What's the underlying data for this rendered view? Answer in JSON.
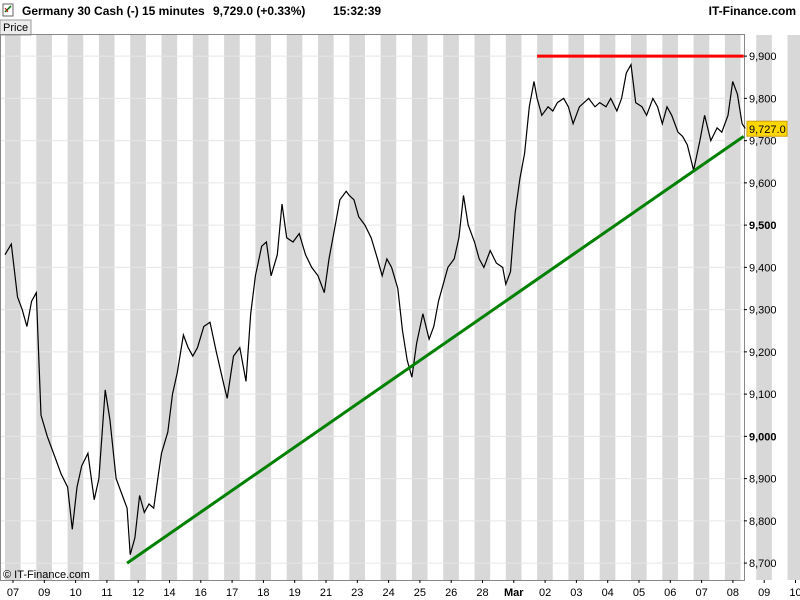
{
  "header": {
    "instrument": "Germany 30 Cash (-)",
    "timeframe": "15 minutes",
    "quote": "9,729.0 (+0.33%)",
    "time": "15:32:39",
    "brand": "IT-Finance.com"
  },
  "price_tab_label": "Price",
  "copyright": "© IT-Finance.com",
  "current_price_label": "9,727.0",
  "colors": {
    "price_line": "#000000",
    "resistance": "#ff0000",
    "support": "#008000",
    "band_shaded": "#d8d8d8",
    "band_light": "#ffffff",
    "price_badge": "#ffd700"
  },
  "chart_data": {
    "type": "line",
    "title": "Germany 30 Cash (-)",
    "xlabel": "",
    "ylabel": "",
    "ylim": [
      8660,
      9950
    ],
    "yticks": [
      8700,
      8800,
      8900,
      9000,
      9100,
      9200,
      9300,
      9400,
      9500,
      9600,
      9700,
      9800,
      9900
    ],
    "ytick_labels": [
      "8,700",
      "8,800",
      "8,900",
      "9,000",
      "9,100",
      "9,200",
      "9,300",
      "9,400",
      "9,500",
      "9,600",
      "9,700",
      "9,800",
      "9,900"
    ],
    "bold_yticks": [
      "9,000",
      "9,500"
    ],
    "grid": true,
    "sessions": [
      "07",
      "09",
      "10",
      "11",
      "12",
      "14",
      "16",
      "17",
      "18",
      "19",
      "21",
      "23",
      "24",
      "25",
      "26",
      "28",
      "Mar",
      "02",
      "03",
      "04",
      "05",
      "06",
      "07",
      "08",
      "09",
      "10"
    ],
    "x_tick_labels": [
      "07",
      "09",
      "10",
      "11",
      "12",
      "14",
      "16",
      "17",
      "18",
      "19",
      "21",
      "23",
      "24",
      "25",
      "26",
      "28",
      "Mar",
      "02",
      "03",
      "04",
      "05",
      "06",
      "07",
      "08",
      "09",
      "10"
    ],
    "series": [
      {
        "values": [
          [
            0.0,
            9430
          ],
          [
            0.2,
            9455
          ],
          [
            0.4,
            9330
          ],
          [
            0.55,
            9300
          ],
          [
            0.7,
            9260
          ],
          [
            0.85,
            9320
          ],
          [
            1.0,
            9340
          ],
          [
            1.15,
            9050
          ],
          [
            1.35,
            9000
          ],
          [
            1.6,
            8950
          ],
          [
            1.8,
            8910
          ],
          [
            2.0,
            8880
          ],
          [
            2.15,
            8780
          ],
          [
            2.3,
            8880
          ],
          [
            2.45,
            8930
          ],
          [
            2.65,
            8960
          ],
          [
            2.85,
            8850
          ],
          [
            3.0,
            8900
          ],
          [
            3.2,
            9110
          ],
          [
            3.35,
            9040
          ],
          [
            3.55,
            8900
          ],
          [
            3.75,
            8860
          ],
          [
            3.9,
            8830
          ],
          [
            4.0,
            8720
          ],
          [
            4.15,
            8760
          ],
          [
            4.3,
            8860
          ],
          [
            4.45,
            8820
          ],
          [
            4.6,
            8840
          ],
          [
            4.75,
            8830
          ],
          [
            4.9,
            8910
          ],
          [
            5.0,
            8960
          ],
          [
            5.2,
            9010
          ],
          [
            5.35,
            9100
          ],
          [
            5.5,
            9150
          ],
          [
            5.7,
            9240
          ],
          [
            5.85,
            9210
          ],
          [
            6.0,
            9190
          ],
          [
            6.15,
            9210
          ],
          [
            6.35,
            9260
          ],
          [
            6.55,
            9270
          ],
          [
            6.75,
            9200
          ],
          [
            7.0,
            9120
          ],
          [
            7.1,
            9090
          ],
          [
            7.3,
            9190
          ],
          [
            7.5,
            9210
          ],
          [
            7.7,
            9130
          ],
          [
            7.85,
            9290
          ],
          [
            8.0,
            9380
          ],
          [
            8.2,
            9450
          ],
          [
            8.35,
            9460
          ],
          [
            8.5,
            9380
          ],
          [
            8.7,
            9430
          ],
          [
            8.85,
            9550
          ],
          [
            9.0,
            9470
          ],
          [
            9.2,
            9460
          ],
          [
            9.4,
            9480
          ],
          [
            9.6,
            9430
          ],
          [
            9.8,
            9400
          ],
          [
            10.0,
            9380
          ],
          [
            10.2,
            9340
          ],
          [
            10.35,
            9420
          ],
          [
            10.5,
            9480
          ],
          [
            10.7,
            9560
          ],
          [
            10.9,
            9580
          ],
          [
            11.0,
            9570
          ],
          [
            11.15,
            9560
          ],
          [
            11.3,
            9520
          ],
          [
            11.5,
            9500
          ],
          [
            11.7,
            9470
          ],
          [
            11.9,
            9420
          ],
          [
            12.05,
            9380
          ],
          [
            12.2,
            9420
          ],
          [
            12.35,
            9400
          ],
          [
            12.55,
            9350
          ],
          [
            12.7,
            9250
          ],
          [
            12.85,
            9180
          ],
          [
            13.0,
            9140
          ],
          [
            13.15,
            9220
          ],
          [
            13.35,
            9290
          ],
          [
            13.55,
            9230
          ],
          [
            13.7,
            9260
          ],
          [
            13.85,
            9320
          ],
          [
            14.0,
            9360
          ],
          [
            14.15,
            9400
          ],
          [
            14.35,
            9420
          ],
          [
            14.5,
            9470
          ],
          [
            14.65,
            9570
          ],
          [
            14.8,
            9500
          ],
          [
            15.0,
            9460
          ],
          [
            15.15,
            9420
          ],
          [
            15.3,
            9400
          ],
          [
            15.5,
            9440
          ],
          [
            15.7,
            9410
          ],
          [
            15.9,
            9400
          ],
          [
            16.0,
            9360
          ],
          [
            16.15,
            9390
          ],
          [
            16.3,
            9530
          ],
          [
            16.45,
            9610
          ],
          [
            16.6,
            9670
          ],
          [
            16.75,
            9780
          ],
          [
            16.9,
            9840
          ],
          [
            17.0,
            9800
          ],
          [
            17.15,
            9760
          ],
          [
            17.35,
            9780
          ],
          [
            17.5,
            9770
          ],
          [
            17.65,
            9790
          ],
          [
            17.85,
            9800
          ],
          [
            18.0,
            9780
          ],
          [
            18.15,
            9740
          ],
          [
            18.35,
            9780
          ],
          [
            18.5,
            9790
          ],
          [
            18.65,
            9800
          ],
          [
            18.85,
            9780
          ],
          [
            19.0,
            9790
          ],
          [
            19.2,
            9780
          ],
          [
            19.35,
            9800
          ],
          [
            19.55,
            9770
          ],
          [
            19.7,
            9800
          ],
          [
            19.85,
            9860
          ],
          [
            20.0,
            9880
          ],
          [
            20.15,
            9790
          ],
          [
            20.35,
            9780
          ],
          [
            20.5,
            9760
          ],
          [
            20.7,
            9800
          ],
          [
            20.85,
            9780
          ],
          [
            21.0,
            9740
          ],
          [
            21.15,
            9780
          ],
          [
            21.3,
            9760
          ],
          [
            21.5,
            9720
          ],
          [
            21.65,
            9710
          ],
          [
            21.8,
            9690
          ],
          [
            22.0,
            9630
          ],
          [
            22.2,
            9700
          ],
          [
            22.35,
            9760
          ],
          [
            22.55,
            9700
          ],
          [
            22.75,
            9730
          ],
          [
            22.9,
            9720
          ],
          [
            23.1,
            9760
          ],
          [
            23.25,
            9840
          ],
          [
            23.4,
            9810
          ],
          [
            23.55,
            9740
          ],
          [
            23.65,
            9729
          ]
        ]
      }
    ],
    "trendlines": [
      {
        "from": [
          3.9,
          8700
        ],
        "to": [
          23.6,
          9710
        ]
      },
      {
        "from": [
          17.0,
          9900
        ],
        "to": [
          23.6,
          9900
        ]
      }
    ],
    "current_value": 9727
  }
}
